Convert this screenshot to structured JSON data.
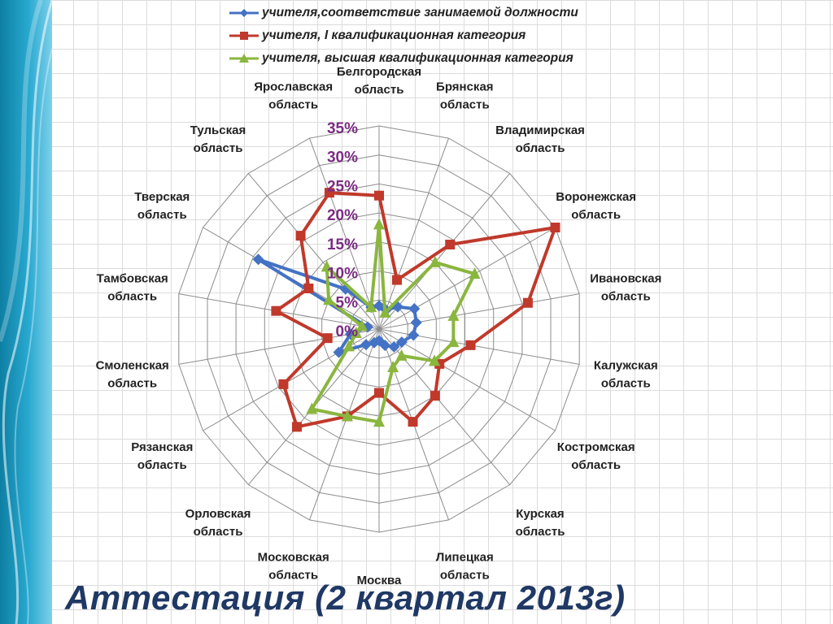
{
  "slide": {
    "title": "Аттестация (2 квартал 2013г)"
  },
  "chart_data": {
    "type": "radar",
    "title": "",
    "categories": [
      "Белгородская область",
      "Брянская область",
      "Владимирская область",
      "Воронежская область",
      "Ивановская область",
      "Калужская область",
      "Костромская область",
      "Курская область",
      "Липецкая область",
      "Москва",
      "Московская область",
      "Орловская область",
      "Рязанская область",
      "Смоленская область",
      "Тамбовская область",
      "Тверская область",
      "Тульская область",
      "Ярославская область"
    ],
    "radial_ticks": [
      "0%",
      "5%",
      "10%",
      "15%",
      "20%",
      "25%",
      "30%",
      "35%"
    ],
    "rmax": 35,
    "grid": true,
    "legend_position": "top",
    "series": [
      {
        "name": "учителя,соответствие занимаемой должности",
        "color": "#4472c4",
        "marker": "diamond",
        "values": [
          4,
          3.5,
          5,
          7,
          6.5,
          6,
          4.5,
          4,
          3,
          2,
          2.5,
          3.5,
          8,
          5,
          2,
          24,
          9,
          4
        ]
      },
      {
        "name": "учителя, I квалификационная категория",
        "color": "#c0392b",
        "marker": "square",
        "values": [
          23,
          9,
          19,
          35,
          26,
          16,
          12,
          15,
          17,
          11,
          16,
          22,
          19,
          9,
          18,
          14,
          21,
          25
        ]
      },
      {
        "name": "учителя, высшая квалификационная категория",
        "color": "#8ab63e",
        "marker": "triangle",
        "values": [
          18,
          3,
          15,
          19,
          13,
          13,
          11,
          6,
          7,
          16,
          16,
          18,
          6,
          4,
          3,
          10,
          14,
          4
        ]
      }
    ]
  }
}
